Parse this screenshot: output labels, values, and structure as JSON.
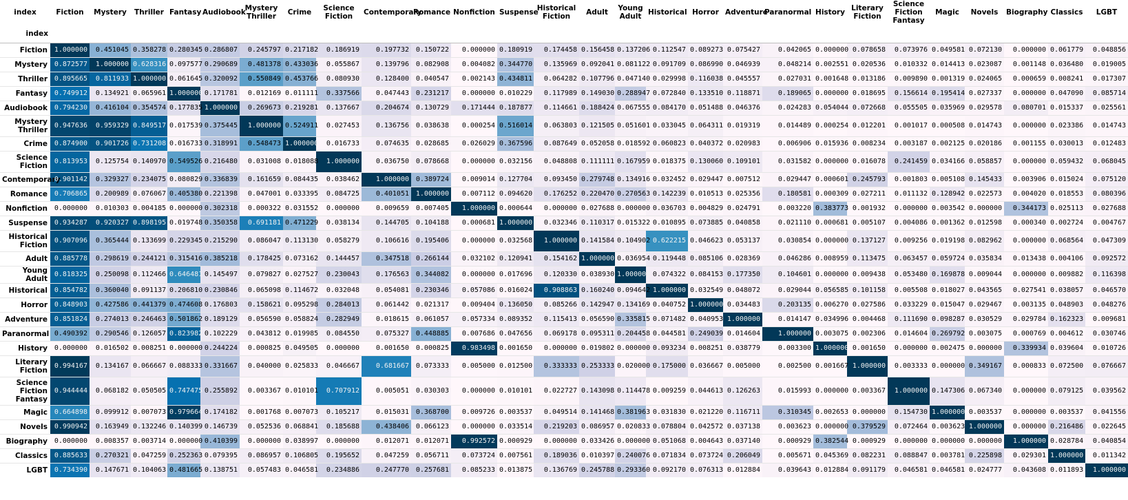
{
  "chart_data": {
    "type": "heatmap",
    "index_label": "index",
    "columns": [
      "Fiction",
      "Mystery",
      "Thriller",
      "Fantasy",
      "Audiobook",
      "Mystery Thriller",
      "Crime",
      "Science Fiction",
      "Contemporary",
      "Romance",
      "Nonfiction",
      "Suspense",
      "Historical Fiction",
      "Adult",
      "Young Adult",
      "Historical",
      "Horror",
      "Adventure",
      "Paranormal",
      "History",
      "Literary Fiction",
      "Science Fiction Fantasy",
      "Magic",
      "Novels",
      "Biography",
      "Classics",
      "LGBT"
    ],
    "rows": [
      "Fiction",
      "Mystery",
      "Thriller",
      "Fantasy",
      "Audiobook",
      "Mystery Thriller",
      "Crime",
      "Science Fiction",
      "Contemporary",
      "Romance",
      "Nonfiction",
      "Suspense",
      "Historical Fiction",
      "Adult",
      "Young Adult",
      "Historical",
      "Horror",
      "Adventure",
      "Paranormal",
      "History",
      "Literary Fiction",
      "Science Fiction Fantasy",
      "Magic",
      "Novels",
      "Biography",
      "Classics",
      "LGBT"
    ],
    "colormap": "PuBu",
    "color_range": [
      0,
      1
    ],
    "values": [
      [
        "1.000000",
        "0.451045",
        "0.358278",
        "0.280345",
        "0.286807",
        "0.245797",
        "0.217182",
        "0.186919",
        "0.197732",
        "0.150722",
        "0.000000",
        "0.180919",
        "0.174458",
        "0.156458",
        "0.137206",
        "0.112547",
        "0.089273",
        "0.075427",
        "0.042065",
        "0.000000",
        "0.078658",
        "0.073976",
        "0.049581",
        "0.072130",
        "0.000000",
        "0.061779",
        "0.048856"
      ],
      [
        "0.872577",
        "1.000000",
        "0.628316",
        "0.097577",
        "0.290689",
        "0.481378",
        "0.433036",
        "0.055867",
        "0.139796",
        "0.082908",
        "0.004082",
        "0.344770",
        "0.135969",
        "0.092041",
        "0.081122",
        "0.091709",
        "0.086990",
        "0.046939",
        "0.048214",
        "0.002551",
        "0.020536",
        "0.010332",
        "0.014413",
        "0.023087",
        "0.001148",
        "0.036480",
        "0.019005"
      ],
      [
        "0.895665",
        "0.811933",
        "1.000000",
        "0.061645",
        "0.320092",
        "0.550849",
        "0.453766",
        "0.080930",
        "0.128400",
        "0.040547",
        "0.002143",
        "0.434811",
        "0.064282",
        "0.107796",
        "0.047140",
        "0.029998",
        "0.116038",
        "0.045557",
        "0.027031",
        "0.001648",
        "0.013186",
        "0.009890",
        "0.001319",
        "0.024065",
        "0.000659",
        "0.008241",
        "0.017307"
      ],
      [
        "0.749912",
        "0.134921",
        "0.065961",
        "1.000000",
        "0.171781",
        "0.012169",
        "0.011111",
        "0.337566",
        "0.047443",
        "0.231217",
        "0.000000",
        "0.010229",
        "0.117989",
        "0.149030",
        "0.288947",
        "0.072840",
        "0.133510",
        "0.118871",
        "0.189065",
        "0.000000",
        "0.018695",
        "0.156614",
        "0.195414",
        "0.027337",
        "0.000000",
        "0.047090",
        "0.085714"
      ],
      [
        "0.794230",
        "0.416104",
        "0.354574",
        "0.177835",
        "1.000000",
        "0.269673",
        "0.219281",
        "0.137667",
        "0.204674",
        "0.130729",
        "0.171444",
        "0.187877",
        "0.114661",
        "0.188424",
        "0.067555",
        "0.084170",
        "0.051488",
        "0.046376",
        "0.024283",
        "0.054044",
        "0.072668",
        "0.055505",
        "0.035969",
        "0.029578",
        "0.080701",
        "0.015337",
        "0.025561"
      ],
      [
        "0.947636",
        "0.959329",
        "0.849517",
        "0.017539",
        "0.375445",
        "1.000000",
        "0.524911",
        "0.027453",
        "0.136756",
        "0.038638",
        "0.000254",
        "0.516014",
        "0.063803",
        "0.121505",
        "0.051601",
        "0.033045",
        "0.064311",
        "0.019319",
        "0.014489",
        "0.000254",
        "0.012201",
        "0.001017",
        "0.000508",
        "0.014743",
        "0.000000",
        "0.023386",
        "0.014743"
      ],
      [
        "0.874900",
        "0.901726",
        "0.731208",
        "0.016733",
        "0.318991",
        "0.548473",
        "1.000000",
        "0.016733",
        "0.074635",
        "0.028685",
        "0.026029",
        "0.367596",
        "0.087649",
        "0.052058",
        "0.018592",
        "0.060823",
        "0.040372",
        "0.020983",
        "0.006906",
        "0.015936",
        "0.008234",
        "0.003187",
        "0.002125",
        "0.020186",
        "0.001155",
        "0.030013",
        "0.012483"
      ],
      [
        "0.813953",
        "0.125754",
        "0.140970",
        "0.549526",
        "0.216480",
        "0.031008",
        "0.018088",
        "1.000000",
        "0.036750",
        "0.078668",
        "0.000000",
        "0.032156",
        "0.048808",
        "0.111111",
        "0.167959",
        "0.018375",
        "0.130060",
        "0.109101",
        "0.031582",
        "0.000000",
        "0.016078",
        "0.241459",
        "0.034166",
        "0.058857",
        "0.000000",
        "0.059432",
        "0.068045"
      ],
      [
        "0.901142",
        "0.329327",
        "0.234075",
        "0.080829",
        "0.336839",
        "0.161659",
        "0.084435",
        "0.038462",
        "1.000000",
        "0.389724",
        "0.009014",
        "0.127704",
        "0.093450",
        "0.279748",
        "0.134916",
        "0.032452",
        "0.029447",
        "0.007512",
        "0.029447",
        "0.000601",
        "0.245793",
        "0.001803",
        "0.005108",
        "0.145433",
        "0.003906",
        "0.015024",
        "0.075120"
      ],
      [
        "0.706865",
        "0.200989",
        "0.076067",
        "0.405380",
        "0.221398",
        "0.047001",
        "0.033395",
        "0.084725",
        "0.401051",
        "1.000000",
        "0.007112",
        "0.094620",
        "0.176252",
        "0.220470",
        "0.270563",
        "0.142239",
        "0.010513",
        "0.025356",
        "0.180581",
        "0.000309",
        "0.027211",
        "0.011132",
        "0.128942",
        "0.022573",
        "0.004020",
        "0.018553",
        "0.080396"
      ],
      [
        "0.000000",
        "0.010303",
        "0.004185",
        "0.000000",
        "0.302318",
        "0.000322",
        "0.031552",
        "0.000000",
        "0.009659",
        "0.007405",
        "1.000000",
        "0.000644",
        "0.000000",
        "0.027688",
        "0.000000",
        "0.036703",
        "0.004829",
        "0.024791",
        "0.003220",
        "0.383773",
        "0.001932",
        "0.000000",
        "0.003542",
        "0.000000",
        "0.344173",
        "0.025113",
        "0.027688"
      ],
      [
        "0.934287",
        "0.920327",
        "0.898195",
        "0.019748",
        "0.350358",
        "0.691181",
        "0.471229",
        "0.038134",
        "0.144705",
        "0.104188",
        "0.000681",
        "1.000000",
        "0.032346",
        "0.110317",
        "0.015322",
        "0.010895",
        "0.073885",
        "0.040858",
        "0.021110",
        "0.000681",
        "0.005107",
        "0.004086",
        "0.001362",
        "0.012598",
        "0.000340",
        "0.002724",
        "0.004767"
      ],
      [
        "0.907096",
        "0.365444",
        "0.133699",
        "0.229345",
        "0.215290",
        "0.086047",
        "0.113130",
        "0.058279",
        "0.106616",
        "0.195406",
        "0.000000",
        "0.032568",
        "1.000000",
        "0.141584",
        "0.104902",
        "0.622215",
        "0.046623",
        "0.053137",
        "0.030854",
        "0.000000",
        "0.137127",
        "0.009256",
        "0.019198",
        "0.082962",
        "0.000000",
        "0.068564",
        "0.047309"
      ],
      [
        "0.885778",
        "0.298619",
        "0.244121",
        "0.315416",
        "0.385218",
        "0.178425",
        "0.073162",
        "0.144457",
        "0.347518",
        "0.266144",
        "0.032102",
        "0.120941",
        "0.154162",
        "1.000000",
        "0.036954",
        "0.119448",
        "0.085106",
        "0.028369",
        "0.046286",
        "0.008959",
        "0.113475",
        "0.063457",
        "0.059724",
        "0.035834",
        "0.013438",
        "0.004106",
        "0.092572"
      ],
      [
        "0.818325",
        "0.250098",
        "0.112466",
        "0.646481",
        "0.145497",
        "0.079827",
        "0.027527",
        "0.230043",
        "0.176563",
        "0.344082",
        "0.000000",
        "0.017696",
        "0.120330",
        "0.038930",
        "1.000000",
        "0.074322",
        "0.084153",
        "0.177350",
        "0.104601",
        "0.000000",
        "0.009438",
        "0.053480",
        "0.169878",
        "0.009044",
        "0.000000",
        "0.009882",
        "0.116398"
      ],
      [
        "0.854782",
        "0.360040",
        "0.091137",
        "0.206810",
        "0.230846",
        "0.065098",
        "0.114672",
        "0.032048",
        "0.054081",
        "0.230346",
        "0.057086",
        "0.016024",
        "0.908863",
        "0.160240",
        "0.094642",
        "1.000000",
        "0.032549",
        "0.048072",
        "0.029044",
        "0.056585",
        "0.101158",
        "0.005508",
        "0.018027",
        "0.043565",
        "0.027541",
        "0.038057",
        "0.046570"
      ],
      [
        "0.848903",
        "0.427586",
        "0.441379",
        "0.474608",
        "0.176803",
        "0.158621",
        "0.095298",
        "0.284013",
        "0.061442",
        "0.021317",
        "0.009404",
        "0.136050",
        "0.085266",
        "0.142947",
        "0.134169",
        "0.040752",
        "1.000000",
        "0.034483",
        "0.203135",
        "0.006270",
        "0.027586",
        "0.033229",
        "0.015047",
        "0.029467",
        "0.003135",
        "0.048903",
        "0.048276"
      ],
      [
        "0.851824",
        "0.274013",
        "0.246463",
        "0.501862",
        "0.189129",
        "0.056590",
        "0.058824",
        "0.282949",
        "0.018615",
        "0.061057",
        "0.057334",
        "0.089352",
        "0.115413",
        "0.056590",
        "0.335815",
        "0.071482",
        "0.040953",
        "1.000000",
        "0.014147",
        "0.034996",
        "0.004468",
        "0.111690",
        "0.098287",
        "0.030529",
        "0.029784",
        "0.162323",
        "0.009681"
      ],
      [
        "0.490392",
        "0.290546",
        "0.126057",
        "0.823982",
        "0.102229",
        "0.043812",
        "0.019985",
        "0.084550",
        "0.075327",
        "0.448885",
        "0.007686",
        "0.047656",
        "0.069178",
        "0.095311",
        "0.204458",
        "0.044581",
        "0.249039",
        "0.014604",
        "1.000000",
        "0.003075",
        "0.002306",
        "0.014604",
        "0.269792",
        "0.003075",
        "0.000769",
        "0.004612",
        "0.030746"
      ],
      [
        "0.000000",
        "0.016502",
        "0.008251",
        "0.000000",
        "0.244224",
        "0.000825",
        "0.049505",
        "0.000000",
        "0.001650",
        "0.000825",
        "0.983498",
        "0.001650",
        "0.000000",
        "0.019802",
        "0.000000",
        "0.093234",
        "0.008251",
        "0.038779",
        "0.003300",
        "1.000000",
        "0.001650",
        "0.000000",
        "0.002475",
        "0.000000",
        "0.339934",
        "0.039604",
        "0.010726"
      ],
      [
        "0.994167",
        "0.134167",
        "0.066667",
        "0.088333",
        "0.331667",
        "0.040000",
        "0.025833",
        "0.046667",
        "0.681667",
        "0.073333",
        "0.005000",
        "0.012500",
        "0.333333",
        "0.253333",
        "0.020000",
        "0.175000",
        "0.036667",
        "0.005000",
        "0.002500",
        "0.001667",
        "1.000000",
        "0.003333",
        "0.000000",
        "0.349167",
        "0.000833",
        "0.072500",
        "0.076667"
      ],
      [
        "0.944444",
        "0.068182",
        "0.050505",
        "0.747475",
        "0.255892",
        "0.003367",
        "0.010101",
        "0.707912",
        "0.005051",
        "0.030303",
        "0.000000",
        "0.010101",
        "0.022727",
        "0.143098",
        "0.114478",
        "0.009259",
        "0.044613",
        "0.126263",
        "0.015993",
        "0.000000",
        "0.003367",
        "1.000000",
        "0.147306",
        "0.067340",
        "0.000000",
        "0.079125",
        "0.039562"
      ],
      [
        "0.664898",
        "0.099912",
        "0.007073",
        "0.979664",
        "0.174182",
        "0.001768",
        "0.007073",
        "0.105217",
        "0.015031",
        "0.368700",
        "0.009726",
        "0.003537",
        "0.049514",
        "0.141468",
        "0.381963",
        "0.031830",
        "0.021220",
        "0.116711",
        "0.310345",
        "0.002653",
        "0.000000",
        "0.154730",
        "1.000000",
        "0.003537",
        "0.000000",
        "0.003537",
        "0.041556"
      ],
      [
        "0.990942",
        "0.163949",
        "0.132246",
        "0.140399",
        "0.146739",
        "0.052536",
        "0.068841",
        "0.185688",
        "0.438406",
        "0.066123",
        "0.000000",
        "0.033514",
        "0.219203",
        "0.086957",
        "0.020833",
        "0.078804",
        "0.042572",
        "0.037138",
        "0.003623",
        "0.000000",
        "0.379529",
        "0.072464",
        "0.003623",
        "1.000000",
        "0.000000",
        "0.216486",
        "0.022645"
      ],
      [
        "0.000000",
        "0.008357",
        "0.003714",
        "0.000000",
        "0.410399",
        "0.000000",
        "0.038997",
        "0.000000",
        "0.012071",
        "0.012071",
        "0.992572",
        "0.000929",
        "0.000000",
        "0.033426",
        "0.000000",
        "0.051068",
        "0.004643",
        "0.037140",
        "0.000929",
        "0.382544",
        "0.000929",
        "0.000000",
        "0.000000",
        "0.000000",
        "1.000000",
        "0.028784",
        "0.040854"
      ],
      [
        "0.885633",
        "0.270321",
        "0.047259",
        "0.252363",
        "0.079395",
        "0.086957",
        "0.106805",
        "0.195652",
        "0.047259",
        "0.056711",
        "0.073724",
        "0.007561",
        "0.189036",
        "0.010397",
        "0.240076",
        "0.071834",
        "0.073724",
        "0.206049",
        "0.005671",
        "0.045369",
        "0.082231",
        "0.088847",
        "0.003781",
        "0.225898",
        "0.029301",
        "1.000000",
        "0.011342"
      ],
      [
        "0.734390",
        "0.147671",
        "0.104063",
        "0.481665",
        "0.138751",
        "0.057483",
        "0.046581",
        "0.234886",
        "0.247770",
        "0.257681",
        "0.085233",
        "0.013875",
        "0.136769",
        "0.245788",
        "0.293360",
        "0.092170",
        "0.076313",
        "0.012884",
        "0.039643",
        "0.012884",
        "0.091179",
        "0.046581",
        "0.046581",
        "0.024777",
        "0.043608",
        "0.011893",
        "1.000000"
      ]
    ]
  }
}
